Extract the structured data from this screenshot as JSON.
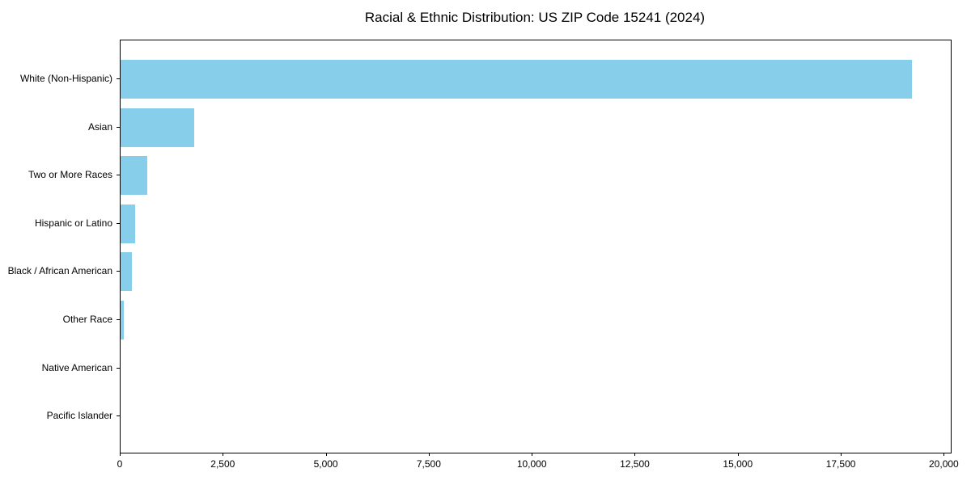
{
  "chart_data": {
    "type": "bar",
    "orientation": "horizontal",
    "title": "Racial & Ethnic Distribution: US ZIP Code 15241 (2024)",
    "categories": [
      "White (Non-Hispanic)",
      "Asian",
      "Two or More Races",
      "Hispanic or Latino",
      "Black / African American",
      "Other Race",
      "Native American",
      "Pacific Islander"
    ],
    "values": [
      19200,
      1790,
      650,
      350,
      270,
      70,
      0,
      0
    ],
    "xlabel": "",
    "ylabel": "",
    "xlim": [
      0,
      20150
    ],
    "x_ticks": [
      0,
      2500,
      5000,
      7500,
      10000,
      12500,
      15000,
      17500,
      20000
    ],
    "x_tick_labels": [
      "0",
      "2,500",
      "5,000",
      "7,500",
      "10,000",
      "12,500",
      "15,000",
      "17,500",
      "20,000"
    ],
    "bar_color": "#87CEEB",
    "text_color": "#000000",
    "grid": false,
    "legend": "none"
  }
}
